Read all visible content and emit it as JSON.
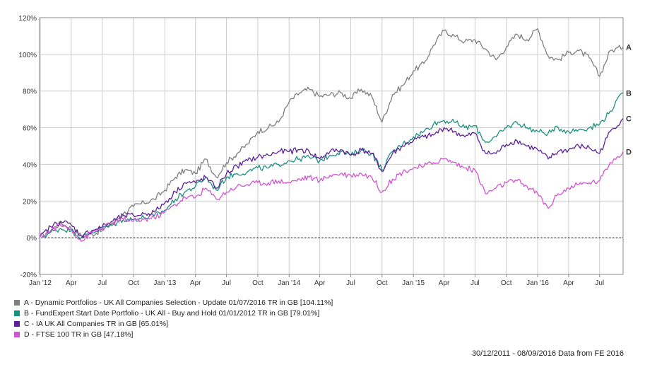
{
  "chart_data": {
    "type": "line",
    "ylim": [
      -20,
      120
    ],
    "y_ticks": [
      "120%",
      "100%",
      "80%",
      "60%",
      "40%",
      "20%",
      "0%",
      "-20%"
    ],
    "y_tick_values": [
      120,
      100,
      80,
      60,
      40,
      20,
      0,
      -20
    ],
    "x_ticks": [
      "Jan '12",
      "Apr",
      "Jul",
      "Oct",
      "Jan '13",
      "Apr",
      "Jul",
      "Oct",
      "Jan '14",
      "Apr",
      "Jul",
      "Oct",
      "Jan '15",
      "Apr",
      "Jul",
      "Oct",
      "Jan '16",
      "Apr",
      "Jul"
    ],
    "grid": true,
    "legend_position": "bottom-left",
    "x_dates": [
      "2011-12-30",
      "2012-02-01",
      "2012-03-01",
      "2012-04-01",
      "2012-05-01",
      "2012-06-01",
      "2012-07-01",
      "2012-08-01",
      "2012-09-01",
      "2012-10-01",
      "2012-11-01",
      "2012-12-01",
      "2013-01-01",
      "2013-02-01",
      "2013-03-01",
      "2013-04-01",
      "2013-05-01",
      "2013-06-01",
      "2013-07-01",
      "2013-08-01",
      "2013-09-01",
      "2013-10-01",
      "2013-11-01",
      "2013-12-01",
      "2014-01-01",
      "2014-02-01",
      "2014-03-01",
      "2014-04-01",
      "2014-05-01",
      "2014-06-01",
      "2014-07-01",
      "2014-08-01",
      "2014-09-01",
      "2014-10-01",
      "2014-11-01",
      "2014-12-01",
      "2015-01-01",
      "2015-02-01",
      "2015-03-01",
      "2015-04-01",
      "2015-05-01",
      "2015-06-01",
      "2015-07-01",
      "2015-08-01",
      "2015-09-01",
      "2015-10-01",
      "2015-11-01",
      "2015-12-01",
      "2016-01-01",
      "2016-02-01",
      "2016-03-01",
      "2016-04-01",
      "2016-05-01",
      "2016-06-01",
      "2016-07-01",
      "2016-08-01",
      "2016-09-08"
    ],
    "series": [
      {
        "name": "A",
        "label": "A - Dynamic Portfolios - UK All Companies Selection - Update 01/07/2016 TR in GB [104.11%]",
        "color": "#7f7f7f",
        "values": [
          0,
          4,
          8,
          5,
          1,
          2,
          4,
          8,
          13,
          17,
          19,
          21,
          26,
          33,
          37,
          35,
          43,
          33,
          41,
          46,
          51,
          58,
          60,
          63,
          74,
          79,
          81,
          77,
          78,
          79,
          76,
          81,
          77,
          63,
          78,
          83,
          91,
          95,
          105,
          113,
          110,
          107,
          108,
          103,
          97,
          104,
          111,
          108,
          114,
          99,
          97,
          101,
          102,
          98,
          88,
          102,
          104
        ]
      },
      {
        "name": "B",
        "label": "B - FundExpert Start Date Portfolio - UK All - Buy and Hold 01/01/2012 TR in GB [79.01%]",
        "color": "#1a9080",
        "values": [
          0,
          3,
          5,
          4,
          0,
          3,
          5,
          7,
          10,
          10,
          11,
          12,
          15,
          21,
          25,
          28,
          33,
          26,
          33,
          35,
          36,
          38,
          38,
          40,
          42,
          43,
          44,
          42,
          45,
          47,
          45,
          48,
          46,
          37,
          47,
          51,
          55,
          58,
          62,
          64,
          63,
          60,
          61,
          52,
          55,
          60,
          63,
          60,
          58,
          57,
          60,
          58,
          59,
          60,
          62,
          69,
          79
        ]
      },
      {
        "name": "C",
        "label": "C - IA UK All Companies TR in GB [65.01%]",
        "color": "#5c2098",
        "values": [
          0,
          6,
          9,
          7,
          1,
          4,
          6,
          9,
          12,
          12,
          13,
          14,
          19,
          25,
          30,
          30,
          33,
          27,
          35,
          39,
          42,
          44,
          45,
          47,
          47,
          48,
          47,
          43,
          47,
          48,
          45,
          48,
          46,
          36,
          46,
          50,
          53,
          55,
          56,
          60,
          58,
          55,
          57,
          46,
          46,
          51,
          53,
          50,
          48,
          43,
          47,
          48,
          50,
          49,
          46,
          58,
          65
        ]
      },
      {
        "name": "D",
        "label": "D - FTSE 100 TR in GB [47.18%]",
        "color": "#d055d0",
        "values": [
          0,
          4,
          7,
          5,
          -2,
          3,
          5,
          8,
          10,
          9,
          10,
          11,
          14,
          18,
          22,
          22,
          27,
          21,
          25,
          28,
          29,
          30,
          30,
          31,
          30,
          32,
          33,
          31,
          34,
          35,
          34,
          35,
          33,
          25,
          32,
          36,
          38,
          39,
          41,
          43,
          41,
          38,
          37,
          24,
          27,
          30,
          31,
          28,
          24,
          16,
          24,
          27,
          29,
          30,
          31,
          41,
          47
        ]
      }
    ]
  },
  "legend": [
    {
      "text": "A - Dynamic Portfolios - UK All Companies Selection - Update 01/07/2016 TR in GB [104.11%]",
      "color": "#7f7f7f"
    },
    {
      "text": "B - FundExpert Start Date Portfolio - UK All - Buy and Hold 01/01/2012 TR in GB [79.01%]",
      "color": "#1a9080"
    },
    {
      "text": "C - IA UK All Companies TR in GB [65.01%]",
      "color": "#5c2098"
    },
    {
      "text": "D - FTSE 100 TR in GB [47.18%]",
      "color": "#d055d0"
    }
  ],
  "footer": "30/12/2011 - 08/09/2016 Data from FE 2016",
  "colors": {
    "grid": "#cccccc",
    "axis": "#888888",
    "zero_line": "#000000"
  }
}
